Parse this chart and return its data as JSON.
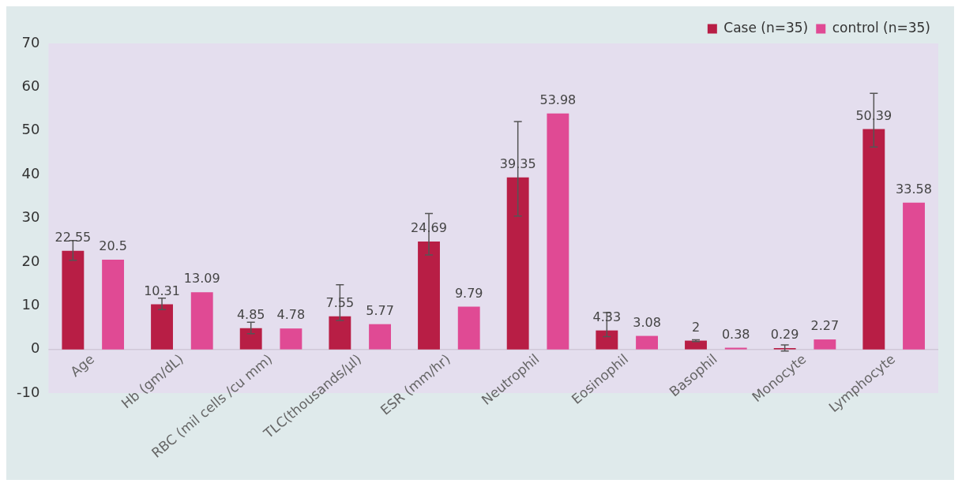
{
  "chart_data": {
    "type": "bar",
    "categories": [
      "Age",
      "Hb (gm/dL)",
      "RBC (mil cells /cu mm)",
      "TLC(thousands/µl)",
      "ESR (mm/hr)",
      "Neutrophil",
      "Eosinophil",
      "Basophil",
      "Monocyte",
      "Lymphocyte"
    ],
    "series": [
      {
        "name": "Case (n=35)",
        "color": "#b81e45",
        "values": [
          22.55,
          10.31,
          4.85,
          7.55,
          24.69,
          39.35,
          4.33,
          2,
          0.29,
          50.39
        ],
        "errors": [
          [
            20.4,
            24.9
          ],
          [
            9.1,
            11.7
          ],
          [
            3.6,
            6.2
          ],
          [
            6.6,
            14.8
          ],
          [
            21.6,
            31.1
          ],
          [
            30.5,
            52.1
          ],
          [
            2.9,
            8.4
          ],
          [
            1.8,
            2.2
          ],
          [
            -0.4,
            1
          ],
          [
            46.3,
            58.6
          ]
        ]
      },
      {
        "name": "control (n=35)",
        "color": "#e04a94",
        "values": [
          20.5,
          13.09,
          4.78,
          5.77,
          9.79,
          53.98,
          3.08,
          0.38,
          2.27,
          33.58
        ]
      }
    ],
    "ylim": [
      -10,
      70
    ],
    "yticks": [
      -10,
      0,
      10,
      20,
      30,
      40,
      50,
      60,
      70
    ],
    "ref_lines": [
      {
        "axis": "y",
        "value": 0,
        "color": "#d0c8d8"
      }
    ],
    "grid": false,
    "legend": "top right",
    "data_labels": true
  }
}
